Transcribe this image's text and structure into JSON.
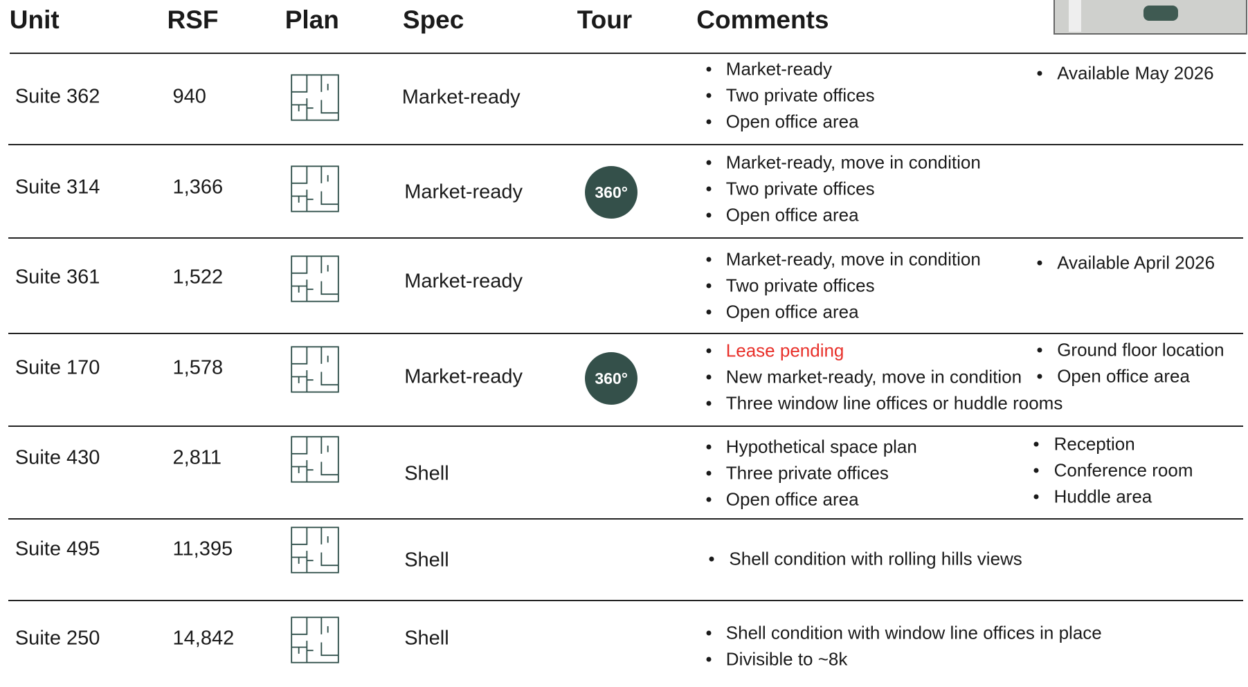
{
  "header": {
    "columns": [
      "Unit",
      "RSF",
      "Plan",
      "Spec",
      "Tour",
      "Comments"
    ]
  },
  "rows": [
    {
      "unit": "Suite 362",
      "rsf": "940",
      "spec": "Market-ready",
      "comments": [
        "Market-ready",
        "Two private offices",
        "Open office area"
      ],
      "notes": [
        "Available May 2026"
      ]
    },
    {
      "unit": "Suite 314",
      "rsf": "1,366",
      "spec": "Market-ready",
      "tour": "360°",
      "comments": [
        "Market-ready, move in condition",
        "Two private offices",
        "Open office area"
      ]
    },
    {
      "unit": "Suite 361",
      "rsf": "1,522",
      "spec": "Market-ready",
      "comments": [
        "Market-ready, move in condition",
        "Two private offices",
        "Open office area"
      ],
      "notes": [
        "Available April 2026"
      ]
    },
    {
      "unit": "Suite 170",
      "rsf": "1,578",
      "spec": "Market-ready",
      "tour": "360°",
      "status": "Lease pending",
      "comments": [
        "New market-ready, move in condition",
        "Three window line offices or huddle rooms"
      ],
      "notes": [
        "Ground floor location",
        "Open office area"
      ]
    },
    {
      "unit": "Suite 430",
      "rsf": "2,811",
      "spec": "Shell",
      "comments": [
        "Hypothetical space plan",
        "Three private offices",
        "Open office area"
      ],
      "notes": [
        "Reception",
        "Conference room",
        "Huddle area"
      ]
    },
    {
      "unit": "Suite 495",
      "rsf": "11,395",
      "spec": "Shell",
      "comments": [
        "Shell condition with rolling hills views"
      ]
    },
    {
      "unit": "Suite 250",
      "rsf": "14,842",
      "spec": "Shell",
      "comments": [
        "Shell condition with window line offices in place",
        "Divisible to ~8k"
      ]
    }
  ]
}
